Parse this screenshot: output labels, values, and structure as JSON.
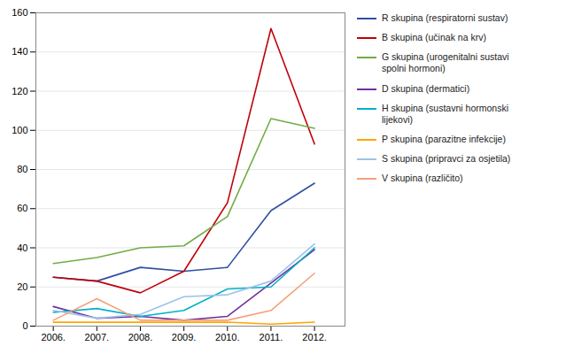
{
  "chart_data": {
    "type": "line",
    "x": [
      2006,
      2007,
      2008,
      2009,
      2010,
      2011,
      2012
    ],
    "xlim": [
      2005.6,
      2012.7
    ],
    "xticks": [
      {
        "value": 2006,
        "label": "2006."
      },
      {
        "value": 2007,
        "label": "2007."
      },
      {
        "value": 2008,
        "label": "2008."
      },
      {
        "value": 2009,
        "label": "2009."
      },
      {
        "value": 2010,
        "label": "2010."
      },
      {
        "value": 2011,
        "label": "2011."
      },
      {
        "value": 2012,
        "label": "2012."
      }
    ],
    "ylim": [
      0,
      160
    ],
    "yticks": [
      0,
      20,
      40,
      60,
      80,
      100,
      120,
      140,
      160
    ],
    "grid": true,
    "legend": "right",
    "series": [
      {
        "name": "R skupina (respiratorni sustav)",
        "color": "#2E4FA3",
        "values": [
          25,
          23,
          30,
          28,
          30,
          59,
          73
        ]
      },
      {
        "name": "B skupina (učinak na krv)",
        "color": "#C0000A",
        "values": [
          25,
          23,
          17,
          28,
          63,
          152,
          93
        ]
      },
      {
        "name": "G skupina (urogenitalni sustavi\nspolni hormoni)",
        "color": "#70AD47",
        "values": [
          32,
          35,
          40,
          41,
          56,
          106,
          101
        ]
      },
      {
        "name": "D skupina (dermatici)",
        "color": "#7030A0",
        "values": [
          10,
          4,
          5,
          3,
          5,
          22,
          39
        ]
      },
      {
        "name": "H skupina (sustavni hormonski\nlijekovi)",
        "color": "#00B0C8",
        "values": [
          7,
          9,
          5,
          8,
          19,
          20,
          40
        ]
      },
      {
        "name": "P skupina (parazitne infekcije)",
        "color": "#FFA500",
        "values": [
          2,
          2,
          2,
          2,
          2,
          1,
          2
        ]
      },
      {
        "name": "S skupina (pripravci za osjetila)",
        "color": "#9DC3E6",
        "values": [
          8,
          4,
          6,
          15,
          16,
          23,
          42
        ]
      },
      {
        "name": "V skupina (različito)",
        "color": "#F4A07A",
        "values": [
          3,
          14,
          3,
          3,
          3,
          8,
          27
        ]
      }
    ]
  }
}
